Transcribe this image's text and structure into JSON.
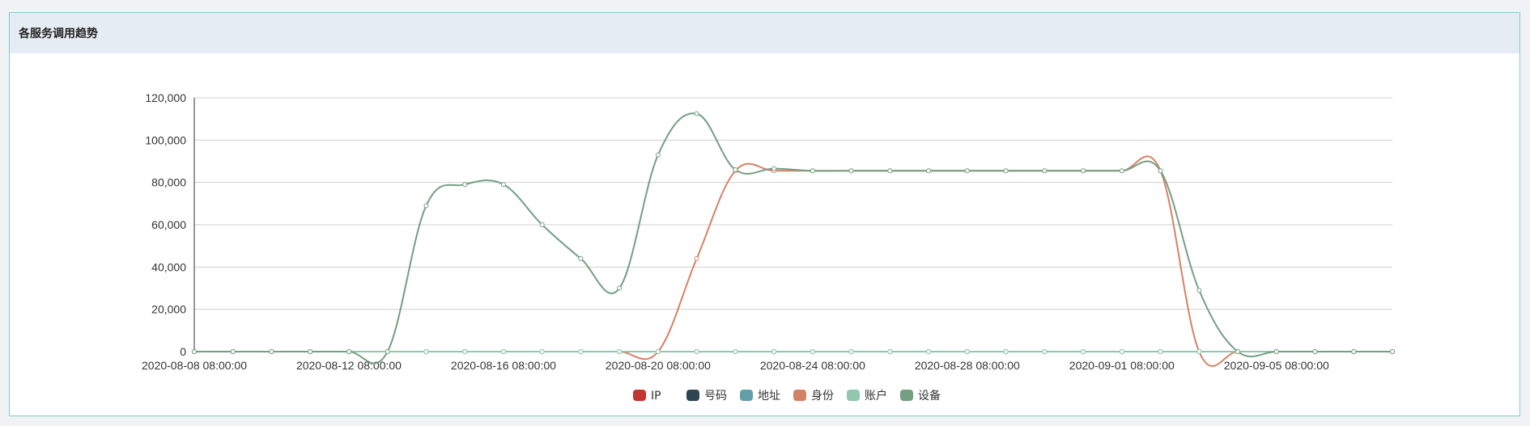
{
  "panel": {
    "title": "各服务调用趋势"
  },
  "chart_data": {
    "type": "line",
    "title": "",
    "xlabel": "",
    "ylabel": "",
    "ylim": [
      0,
      120000
    ],
    "y_ticks": [
      0,
      20000,
      40000,
      60000,
      80000,
      100000,
      120000
    ],
    "y_tick_labels": [
      "0",
      "20,000",
      "40,000",
      "60,000",
      "80,000",
      "100,000",
      "120,000"
    ],
    "x_tick_labels": [
      "2020-08-08 08:00:00",
      "2020-08-12 08:00:00",
      "2020-08-16 08:00:00",
      "2020-08-20 08:00:00",
      "2020-08-24 08:00:00",
      "2020-08-28 08:00:00",
      "2020-09-01 08:00:00",
      "2020-09-05 08:00:00"
    ],
    "x_tick_every": 4,
    "x": [
      "2020-08-08",
      "2020-08-09",
      "2020-08-10",
      "2020-08-11",
      "2020-08-12",
      "2020-08-13",
      "2020-08-14",
      "2020-08-15",
      "2020-08-16",
      "2020-08-17",
      "2020-08-18",
      "2020-08-19",
      "2020-08-20",
      "2020-08-21",
      "2020-08-22",
      "2020-08-23",
      "2020-08-24",
      "2020-08-25",
      "2020-08-26",
      "2020-08-27",
      "2020-08-28",
      "2020-08-29",
      "2020-08-30",
      "2020-08-31",
      "2020-09-01",
      "2020-09-02",
      "2020-09-03",
      "2020-09-04",
      "2020-09-05",
      "2020-09-06",
      "2020-09-07",
      "2020-09-08"
    ],
    "grid": true,
    "legend_position": "bottom-center",
    "series": [
      {
        "name": "IP",
        "color": "#c23531",
        "values": [
          0,
          0,
          0,
          0,
          0,
          0,
          0,
          0,
          0,
          0,
          0,
          0,
          0,
          0,
          0,
          0,
          0,
          0,
          0,
          0,
          0,
          0,
          0,
          0,
          0,
          0,
          0,
          0,
          0,
          0,
          0,
          0
        ]
      },
      {
        "name": "号码",
        "color": "#2f4554",
        "values": [
          0,
          0,
          0,
          0,
          0,
          0,
          0,
          0,
          0,
          0,
          0,
          0,
          0,
          0,
          0,
          0,
          0,
          0,
          0,
          0,
          0,
          0,
          0,
          0,
          0,
          0,
          0,
          0,
          0,
          0,
          0,
          0
        ]
      },
      {
        "name": "地址",
        "color": "#61a0a8",
        "values": [
          0,
          0,
          0,
          0,
          0,
          0,
          0,
          0,
          0,
          0,
          0,
          0,
          0,
          0,
          0,
          0,
          0,
          0,
          0,
          0,
          0,
          0,
          0,
          0,
          0,
          0,
          0,
          0,
          0,
          0,
          0,
          0
        ]
      },
      {
        "name": "身份",
        "color": "#d48265",
        "values": [
          0,
          0,
          0,
          0,
          0,
          0,
          0,
          0,
          0,
          0,
          0,
          0,
          0,
          44000,
          85500,
          85500,
          85500,
          85500,
          85500,
          85500,
          85500,
          85500,
          85500,
          85500,
          85500,
          85500,
          0,
          0,
          0,
          0,
          0,
          0
        ]
      },
      {
        "name": "账户",
        "color": "#91c7ae",
        "values": [
          0,
          0,
          0,
          0,
          0,
          0,
          0,
          0,
          0,
          0,
          0,
          0,
          0,
          0,
          0,
          0,
          0,
          0,
          0,
          0,
          0,
          0,
          0,
          0,
          0,
          0,
          0,
          0,
          0,
          0,
          0,
          0
        ]
      },
      {
        "name": "设备",
        "color": "#749f83",
        "values": [
          0,
          0,
          0,
          0,
          0,
          0,
          69000,
          79000,
          79000,
          60000,
          44000,
          30000,
          93000,
          112500,
          86000,
          86500,
          85500,
          85500,
          85500,
          85500,
          85500,
          85500,
          85500,
          85500,
          85500,
          85500,
          29000,
          0,
          0,
          0,
          0,
          0
        ]
      }
    ]
  }
}
